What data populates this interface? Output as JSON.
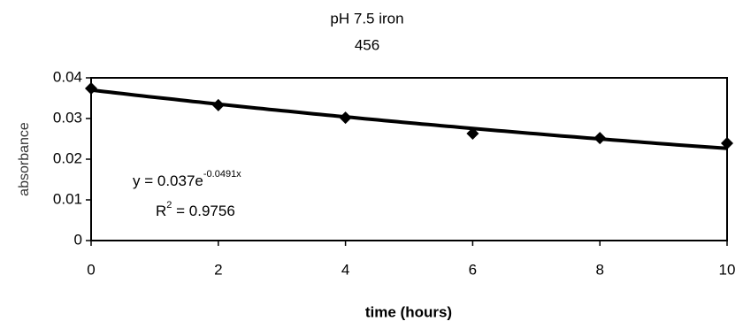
{
  "chart_data": {
    "type": "scatter",
    "title": [
      "pH 7.5 iron",
      "456"
    ],
    "xlabel": "time (hours)",
    "ylabel": "absorbance",
    "x": [
      0,
      2,
      4,
      6,
      8,
      10
    ],
    "series": [
      {
        "color": "#000000",
        "values": [
          0.0374,
          0.0333,
          0.0302,
          0.0263,
          0.0252,
          0.0239
        ]
      }
    ],
    "xlim": [
      0,
      10
    ],
    "xticks": [
      0,
      2,
      4,
      6,
      8,
      10
    ],
    "ylim": [
      0,
      0.04
    ],
    "yticks": [
      0,
      0.01,
      0.02,
      0.03,
      0.04
    ],
    "grid": false,
    "trendline": {
      "coefficient": 0.037,
      "rate": -0.0491
    },
    "equation": {
      "base": "y = 0.037e",
      "exponent": "-0.0491x"
    },
    "r_squared": {
      "symbol": "R",
      "power": "2",
      "rest": " = 0.9756"
    }
  }
}
